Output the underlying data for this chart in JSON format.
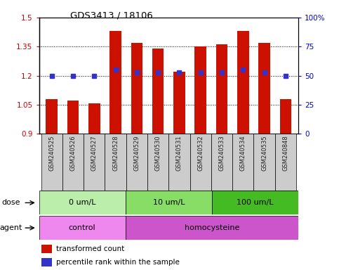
{
  "title": "GDS3413 / 18106",
  "samples": [
    "GSM240525",
    "GSM240526",
    "GSM240527",
    "GSM240528",
    "GSM240529",
    "GSM240530",
    "GSM240531",
    "GSM240532",
    "GSM240533",
    "GSM240534",
    "GSM240535",
    "GSM240848"
  ],
  "red_values": [
    1.08,
    1.07,
    1.055,
    1.43,
    1.37,
    1.34,
    1.22,
    1.35,
    1.36,
    1.43,
    1.37,
    1.08
  ],
  "blue_values": [
    50,
    50,
    50,
    55,
    53,
    53,
    53,
    53,
    53,
    55,
    53,
    50
  ],
  "ylim_left": [
    0.9,
    1.5
  ],
  "ylim_right": [
    0,
    100
  ],
  "yticks_left": [
    0.9,
    1.05,
    1.2,
    1.35,
    1.5
  ],
  "yticks_right": [
    0,
    25,
    50,
    75,
    100
  ],
  "ytick_labels_right": [
    "0",
    "25",
    "50",
    "75",
    "100%"
  ],
  "bar_color": "#cc1100",
  "dot_color": "#3333cc",
  "bar_bottom": 0.9,
  "dose_groups": [
    {
      "label": "0 um/L",
      "start": 0,
      "end": 4,
      "color": "#bbeeaa"
    },
    {
      "label": "10 um/L",
      "start": 4,
      "end": 8,
      "color": "#88dd66"
    },
    {
      "label": "100 um/L",
      "start": 8,
      "end": 12,
      "color": "#44bb22"
    }
  ],
  "agent_groups": [
    {
      "label": "control",
      "start": 0,
      "end": 4,
      "color": "#ee88ee"
    },
    {
      "label": "homocysteine",
      "start": 4,
      "end": 12,
      "color": "#cc55cc"
    }
  ],
  "legend_items": [
    {
      "color": "#cc1100",
      "label": "transformed count"
    },
    {
      "color": "#3333cc",
      "label": "percentile rank within the sample"
    }
  ],
  "background_color": "#ffffff",
  "label_color_left": "#cc0000",
  "label_color_right": "#0000cc",
  "sample_box_color": "#cccccc"
}
